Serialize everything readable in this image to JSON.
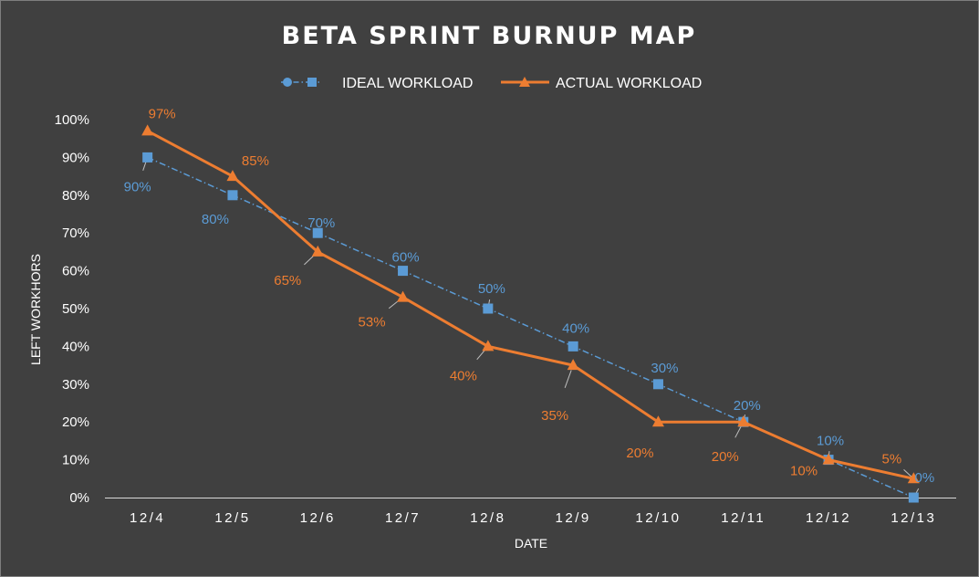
{
  "chart_data": {
    "type": "line",
    "title": "BETA SPRINT BURNUP MAP",
    "xlabel": "DATE",
    "ylabel": "LEFT WORKHORS",
    "categories": [
      "12/4",
      "12/5",
      "12/6",
      "12/7",
      "12/8",
      "12/9",
      "12/10",
      "12/11",
      "12/12",
      "12/13"
    ],
    "ylim": [
      0,
      100
    ],
    "y_ticks": [
      0,
      10,
      20,
      30,
      40,
      50,
      60,
      70,
      80,
      90,
      100
    ],
    "y_tick_suffix": "%",
    "legend_position": "top",
    "grid": false,
    "series": [
      {
        "name": "IDEAL WORKLOAD",
        "values": [
          90,
          80,
          70,
          60,
          50,
          40,
          30,
          20,
          10,
          0
        ],
        "labels": [
          "90%",
          "80%",
          "70%",
          "60%",
          "50%",
          "40%",
          "30%",
          "20%",
          "10%",
          "0%"
        ],
        "color": "#5b9bd5",
        "line_style": "dash-dot",
        "marker": "square"
      },
      {
        "name": "ACTUAL WORKLOAD",
        "values": [
          97,
          85,
          65,
          53,
          40,
          35,
          20,
          20,
          10,
          5
        ],
        "labels": [
          "97%",
          "85%",
          "65%",
          "53%",
          "40%",
          "35%",
          "20%",
          "20%",
          "10%",
          "5%"
        ],
        "color": "#ed7d31",
        "line_style": "solid",
        "marker": "triangle"
      }
    ]
  }
}
